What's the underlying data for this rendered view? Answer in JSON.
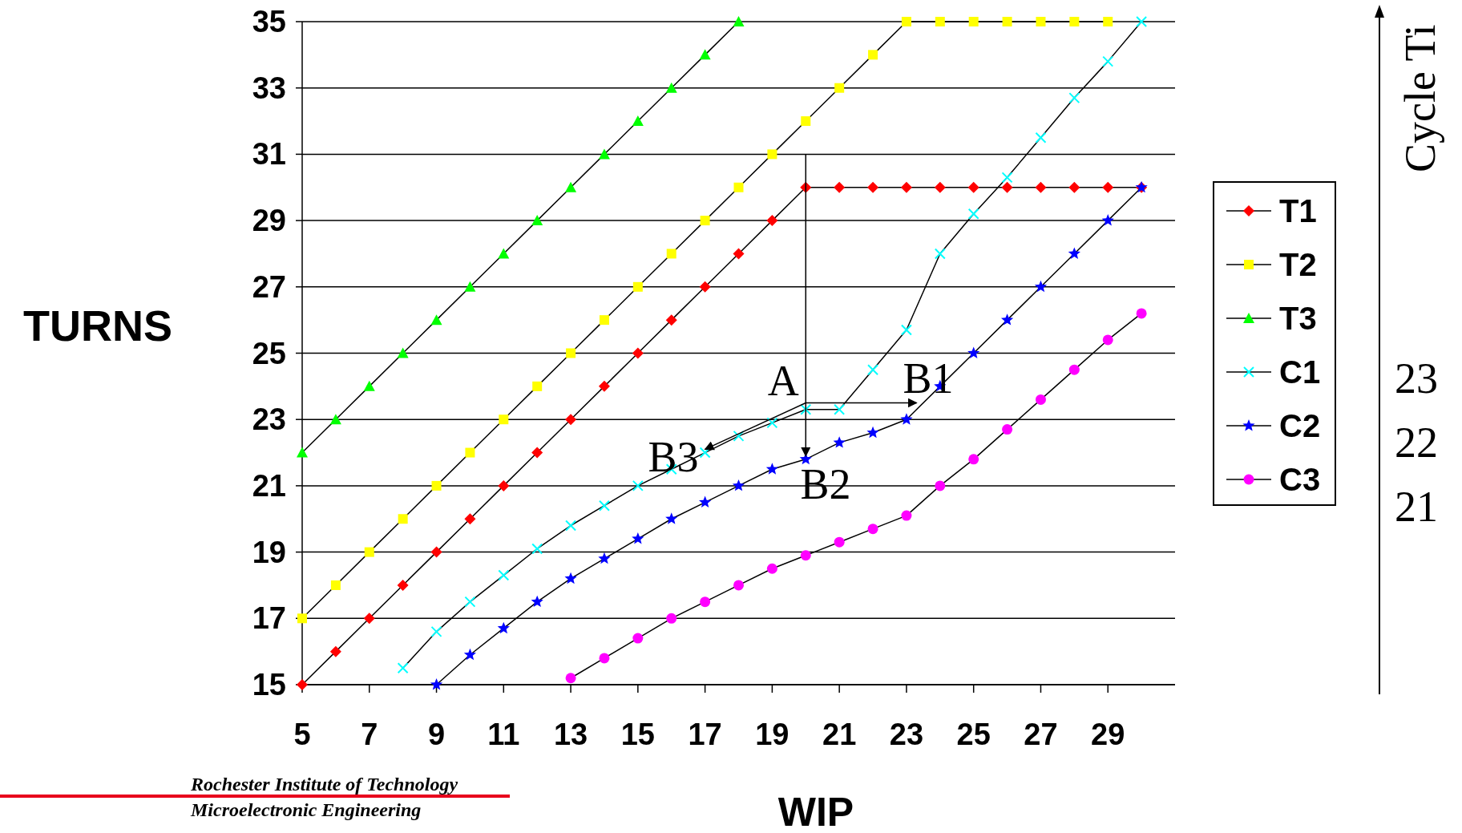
{
  "chart_data": {
    "type": "line",
    "xlabel": "WIP",
    "ylabel": "TURNS",
    "xlim": [
      5,
      31
    ],
    "xticks": [
      5,
      7,
      9,
      11,
      13,
      15,
      17,
      19,
      21,
      23,
      25,
      27,
      29
    ],
    "ylim": [
      15,
      35
    ],
    "yticks": [
      15,
      17,
      19,
      21,
      23,
      25,
      27,
      29,
      31,
      33,
      35
    ],
    "grid": "y",
    "legend": "right",
    "series": [
      {
        "name": "T1",
        "color": "#ff0000",
        "marker": "diamond",
        "x": [
          5,
          6,
          7,
          8,
          9,
          10,
          11,
          12,
          13,
          14,
          15,
          16,
          17,
          18,
          19,
          20,
          21,
          22,
          23,
          24,
          25,
          26,
          27,
          28,
          29,
          30
        ],
        "values": [
          15,
          16,
          17,
          18,
          19,
          20,
          21,
          22,
          23,
          24,
          25,
          26,
          27,
          28,
          29,
          30,
          30,
          30,
          30,
          30,
          30,
          30,
          30,
          30,
          30,
          30
        ]
      },
      {
        "name": "T2",
        "color": "#ffff00",
        "marker": "square",
        "x": [
          5,
          6,
          7,
          8,
          9,
          10,
          11,
          12,
          13,
          14,
          15,
          16,
          17,
          18,
          19,
          20,
          21,
          22,
          23,
          24,
          25,
          26,
          27,
          28,
          29
        ],
        "values": [
          17,
          18,
          19,
          20,
          21,
          22,
          23,
          24,
          25,
          26,
          27,
          28,
          29,
          30,
          31,
          32,
          33,
          34,
          35,
          35,
          35,
          35,
          35,
          35,
          35
        ]
      },
      {
        "name": "T3",
        "color": "#00ff00",
        "marker": "triangle",
        "x": [
          5,
          6,
          7,
          8,
          9,
          10,
          11,
          12,
          13,
          14,
          15,
          16,
          17,
          18
        ],
        "values": [
          22,
          23,
          24,
          25,
          26,
          27,
          28,
          29,
          30,
          31,
          32,
          33,
          34,
          35
        ]
      },
      {
        "name": "C1",
        "color": "#00ffff",
        "marker": "cross",
        "x": [
          8,
          9,
          10,
          11,
          12,
          13,
          14,
          15,
          16,
          17,
          18,
          19,
          20,
          21,
          22,
          23,
          24,
          25,
          26,
          27,
          28,
          29,
          30
        ],
        "values": [
          15.5,
          16.6,
          17.5,
          18.3,
          19.1,
          19.8,
          20.4,
          21,
          21.5,
          22,
          22.5,
          22.9,
          23.3,
          23.3,
          24.5,
          25.7,
          28,
          29.2,
          30.3,
          31.5,
          32.7,
          33.8,
          35
        ]
      },
      {
        "name": "C2",
        "color": "#0000ff",
        "marker": "star",
        "x": [
          9,
          10,
          11,
          12,
          13,
          14,
          15,
          16,
          17,
          18,
          19,
          20,
          21,
          22,
          23,
          24,
          25,
          26,
          27,
          28,
          29,
          30
        ],
        "values": [
          15,
          15.9,
          16.7,
          17.5,
          18.2,
          18.8,
          19.4,
          20,
          20.5,
          21,
          21.5,
          21.8,
          22.3,
          22.6,
          23,
          24,
          25,
          26,
          27,
          28,
          29,
          30
        ]
      },
      {
        "name": "C3",
        "color": "#ff00ff",
        "marker": "circle",
        "x": [
          13,
          14,
          15,
          16,
          17,
          18,
          19,
          20,
          21,
          22,
          23,
          24,
          25,
          26,
          27,
          28,
          29,
          30
        ],
        "values": [
          15.2,
          15.8,
          16.4,
          17,
          17.5,
          18,
          18.5,
          18.9,
          19.3,
          19.7,
          20.1,
          21,
          21.8,
          22.7,
          23.6,
          24.5,
          25.4,
          26.2
        ]
      }
    ],
    "annotations": [
      {
        "text": "A",
        "x": 20,
        "y": 23.3
      },
      "B1",
      "B2",
      "B3",
      "Cycle Ti",
      "23",
      "22",
      "21",
      "Rochester Institute of Technology",
      "Microelectronic Engineering"
    ]
  }
}
